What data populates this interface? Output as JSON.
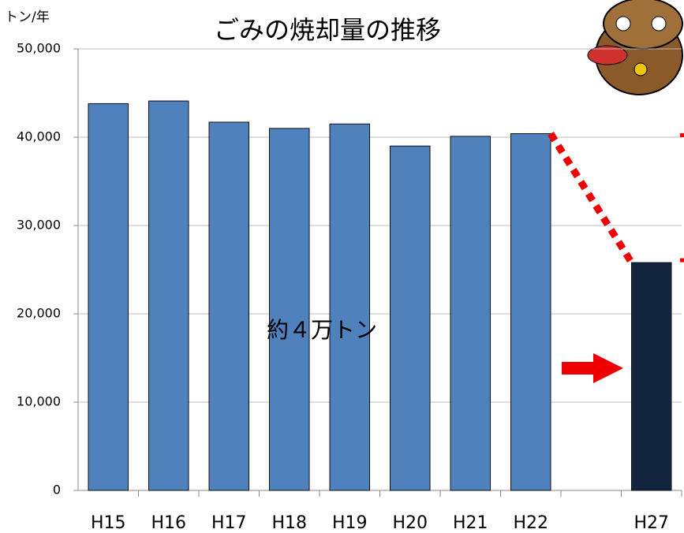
{
  "chart_data": {
    "type": "bar",
    "title": "ごみの焼却量の推移",
    "y_unit": "トン/年",
    "categories": [
      "H15",
      "H16",
      "H17",
      "H18",
      "H19",
      "H20",
      "H21",
      "H22",
      null,
      "H27"
    ],
    "values": [
      43800,
      44100,
      41700,
      41000,
      41500,
      39000,
      40100,
      40400,
      null,
      25800
    ],
    "colors": [
      "#4f81bd",
      "#4f81bd",
      "#4f81bd",
      "#4f81bd",
      "#4f81bd",
      "#4f81bd",
      "#4f81bd",
      "#4f81bd",
      "#4f81bd",
      "#13243f"
    ],
    "ylim": [
      0,
      50000
    ],
    "yticks": [
      0,
      {
        "value": 10000,
        "label": "10,000"
      },
      {
        "value": 20000,
        "label": "20,000"
      },
      {
        "value": 30000,
        "label": "30,000"
      },
      {
        "value": 40000,
        "label": "40,000"
      },
      {
        "value": 50000,
        "label": "50,000"
      }
    ],
    "grid": true,
    "annotation": "約４万トン"
  }
}
